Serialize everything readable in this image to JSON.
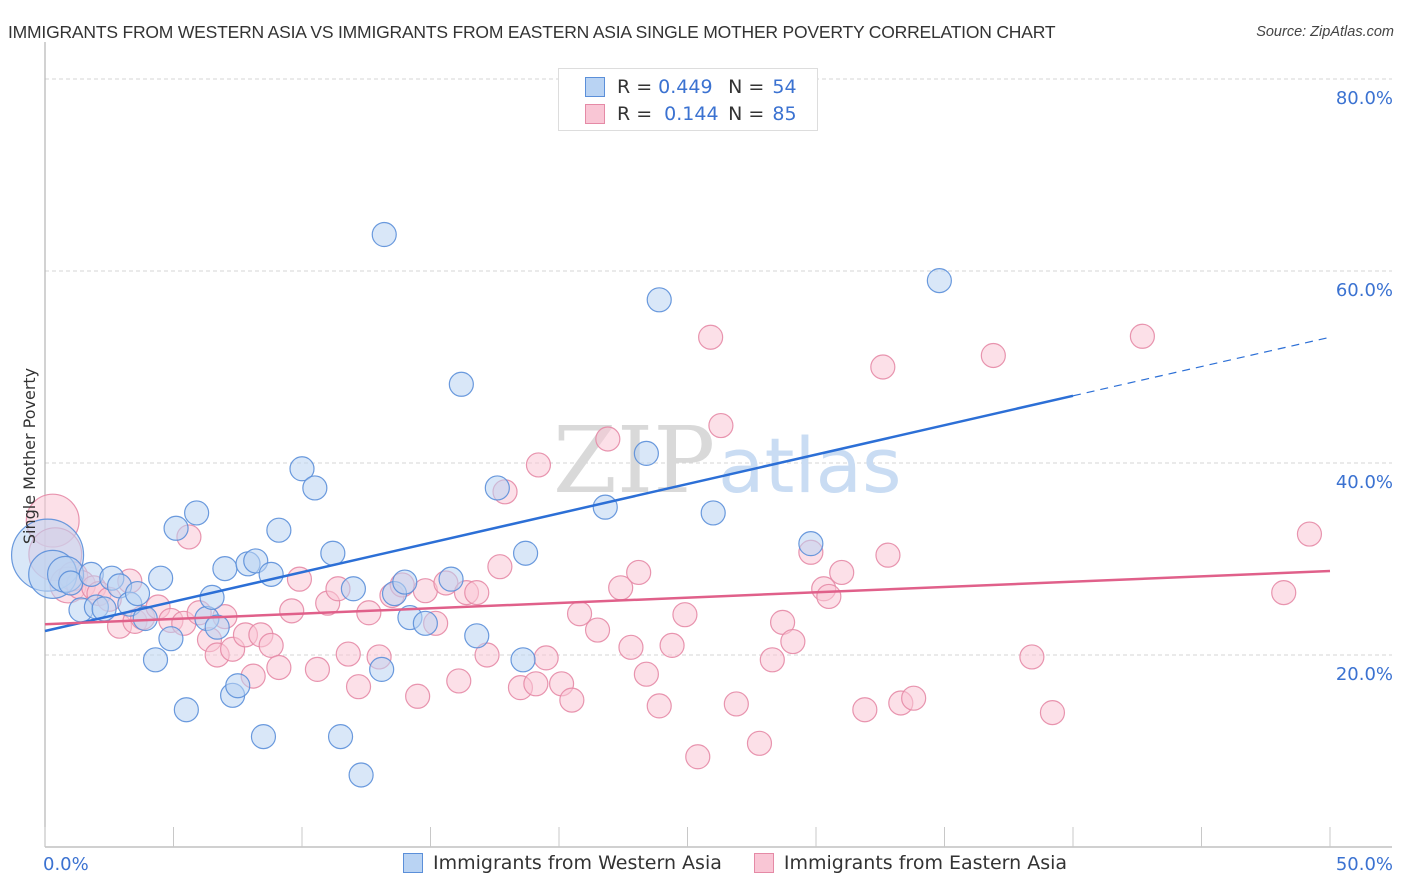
{
  "header": {
    "title": "IMMIGRANTS FROM WESTERN ASIA VS IMMIGRANTS FROM EASTERN ASIA SINGLE MOTHER POVERTY CORRELATION CHART",
    "source": "Source: ZipAtlas.com"
  },
  "legend": {
    "rows": [
      {
        "r_label": "R =",
        "r_value": "0.449",
        "n_label": "N =",
        "n_value": "54"
      },
      {
        "r_label": "R =",
        "r_value": "0.144",
        "n_label": "N =",
        "n_value": "85"
      }
    ]
  },
  "bottom_legend": [
    "Immigrants from Western Asia",
    "Immigrants from Eastern Asia"
  ],
  "watermark": {
    "zip": "ZIP",
    "atlas": "atlas"
  },
  "colors": {
    "blue_fill": "#b9d3f3",
    "blue_stroke": "#5b8fd9",
    "blue_line": "#2c6fd6",
    "pink_fill": "#f9c6d5",
    "pink_stroke": "#e58aa6",
    "pink_line": "#e0608a",
    "tick_text": "#3b72d1"
  },
  "chart_data": {
    "type": "scatter",
    "title": "IMMIGRANTS FROM WESTERN ASIA VS IMMIGRANTS FROM EASTERN ASIA SINGLE MOTHER POVERTY CORRELATION CHART",
    "xlabel": "",
    "ylabel": "Single Mother Poverty",
    "xlim": [
      0,
      50
    ],
    "ylim": [
      0,
      80
    ],
    "x_tick_labels": [
      "0.0%",
      "50.0%"
    ],
    "x_minor_ticks": [
      0,
      5,
      10,
      15,
      20,
      25,
      30,
      35,
      40,
      45,
      50
    ],
    "y_ticks": [
      20,
      40,
      60,
      80
    ],
    "y_tick_labels": [
      "20.0%",
      "40.0%",
      "60.0%",
      "80.0%"
    ],
    "grid": true,
    "legend_position": "top-center",
    "series": [
      {
        "name": "Immigrants from Western Asia",
        "R": 0.449,
        "N": 54,
        "trend": {
          "x": [
            0,
            40,
            50
          ],
          "y": [
            22.5,
            47.0,
            53.1
          ],
          "dashed_from_x": 40
        },
        "points": [
          [
            0.1,
            30.4,
            3
          ],
          [
            0.3,
            28.4,
            2
          ],
          [
            0.8,
            28.4,
            1.5
          ],
          [
            1.0,
            27.5,
            1
          ],
          [
            1.4,
            24.7,
            1
          ],
          [
            1.8,
            28.4,
            1
          ],
          [
            2.0,
            25.0,
            1
          ],
          [
            2.3,
            24.8,
            1
          ],
          [
            2.6,
            28.0,
            1
          ],
          [
            2.9,
            27.2,
            1
          ],
          [
            3.3,
            25.3,
            1
          ],
          [
            3.6,
            26.4,
            1
          ],
          [
            3.9,
            23.8,
            1
          ],
          [
            4.3,
            19.5,
            1
          ],
          [
            4.5,
            28.0,
            1
          ],
          [
            4.9,
            21.7,
            1
          ],
          [
            5.1,
            33.2,
            1
          ],
          [
            5.5,
            14.3,
            1
          ],
          [
            5.9,
            34.8,
            1
          ],
          [
            6.3,
            23.8,
            1
          ],
          [
            6.5,
            26.0,
            1
          ],
          [
            6.7,
            22.9,
            1
          ],
          [
            7.0,
            29.0,
            1
          ],
          [
            7.3,
            15.8,
            1
          ],
          [
            7.5,
            16.8,
            1
          ],
          [
            7.9,
            29.5,
            1
          ],
          [
            8.2,
            29.8,
            1
          ],
          [
            8.5,
            11.5,
            1
          ],
          [
            8.8,
            28.4,
            1
          ],
          [
            9.1,
            33.0,
            1
          ],
          [
            10.0,
            39.4,
            1
          ],
          [
            10.5,
            37.4,
            1
          ],
          [
            11.2,
            30.6,
            1
          ],
          [
            11.5,
            11.5,
            1
          ],
          [
            12.0,
            26.9,
            1
          ],
          [
            12.3,
            7.5,
            1
          ],
          [
            13.1,
            18.5,
            1
          ],
          [
            13.2,
            63.8,
            1
          ],
          [
            13.6,
            26.4,
            1
          ],
          [
            14.0,
            27.6,
            1
          ],
          [
            14.2,
            23.9,
            1
          ],
          [
            14.8,
            23.3,
            1
          ],
          [
            15.8,
            27.9,
            1
          ],
          [
            16.2,
            48.2,
            1
          ],
          [
            16.8,
            22.0,
            1
          ],
          [
            17.6,
            37.4,
            1
          ],
          [
            18.7,
            30.6,
            1
          ],
          [
            18.6,
            19.5,
            1
          ],
          [
            21.8,
            35.4,
            1
          ],
          [
            23.4,
            41.0,
            1
          ],
          [
            23.9,
            57.0,
            1
          ],
          [
            26.0,
            34.8,
            1
          ],
          [
            29.8,
            31.6,
            1
          ],
          [
            34.8,
            59.0,
            1
          ]
        ]
      },
      {
        "name": "Immigrants from Eastern Asia",
        "R": 0.144,
        "N": 85,
        "trend": {
          "x": [
            0,
            50
          ],
          "y": [
            23.2,
            28.75
          ]
        },
        "points": [
          [
            0.3,
            34.0,
            2.2
          ],
          [
            0.4,
            30.5,
            2.2
          ],
          [
            0.9,
            27.3,
            1.5
          ],
          [
            1.1,
            28.2,
            1.2
          ],
          [
            1.4,
            27.3,
            1.2
          ],
          [
            1.9,
            27.0,
            1
          ],
          [
            2.1,
            26.4,
            1
          ],
          [
            2.5,
            25.8,
            1
          ],
          [
            2.9,
            23.0,
            1
          ],
          [
            3.3,
            27.7,
            1
          ],
          [
            3.5,
            23.5,
            1
          ],
          [
            3.8,
            23.9,
            1
          ],
          [
            4.4,
            25.0,
            1
          ],
          [
            4.9,
            23.6,
            1
          ],
          [
            5.4,
            23.3,
            1
          ],
          [
            5.6,
            32.3,
            1
          ],
          [
            6.0,
            24.4,
            1
          ],
          [
            6.4,
            21.6,
            1
          ],
          [
            6.7,
            20.0,
            1
          ],
          [
            7.0,
            24.0,
            1
          ],
          [
            7.3,
            20.6,
            1
          ],
          [
            7.8,
            22.1,
            1
          ],
          [
            8.1,
            17.8,
            1
          ],
          [
            8.4,
            22.1,
            1
          ],
          [
            8.8,
            21.0,
            1
          ],
          [
            9.1,
            18.7,
            1
          ],
          [
            9.6,
            24.6,
            1
          ],
          [
            9.9,
            27.9,
            1
          ],
          [
            10.6,
            18.5,
            1
          ],
          [
            11.0,
            25.4,
            1
          ],
          [
            11.4,
            26.9,
            1
          ],
          [
            11.8,
            20.1,
            1
          ],
          [
            12.2,
            16.7,
            1
          ],
          [
            12.6,
            24.4,
            1
          ],
          [
            13.0,
            19.8,
            1
          ],
          [
            13.5,
            26.2,
            1
          ],
          [
            13.9,
            27.3,
            1
          ],
          [
            14.5,
            15.7,
            1
          ],
          [
            14.8,
            26.7,
            1
          ],
          [
            15.2,
            23.3,
            1
          ],
          [
            15.6,
            27.5,
            1
          ],
          [
            16.1,
            17.3,
            1
          ],
          [
            16.4,
            26.5,
            1
          ],
          [
            16.8,
            26.5,
            1
          ],
          [
            17.2,
            20.0,
            1
          ],
          [
            17.7,
            29.2,
            1
          ],
          [
            17.9,
            37.0,
            1
          ],
          [
            18.5,
            16.6,
            1
          ],
          [
            19.1,
            17.0,
            1
          ],
          [
            19.2,
            39.8,
            1
          ],
          [
            19.5,
            19.7,
            1
          ],
          [
            20.1,
            17.0,
            1
          ],
          [
            20.5,
            15.3,
            1
          ],
          [
            20.8,
            24.3,
            1
          ],
          [
            21.5,
            22.6,
            1
          ],
          [
            21.9,
            42.5,
            1
          ],
          [
            22.4,
            27.0,
            1
          ],
          [
            22.8,
            20.8,
            1
          ],
          [
            23.1,
            28.6,
            1
          ],
          [
            23.4,
            18.0,
            1
          ],
          [
            23.9,
            14.7,
            1
          ],
          [
            24.4,
            21.0,
            1
          ],
          [
            24.9,
            24.2,
            1
          ],
          [
            25.4,
            9.4,
            1
          ],
          [
            25.9,
            53.1,
            1
          ],
          [
            26.3,
            43.9,
            1
          ],
          [
            26.9,
            14.9,
            1
          ],
          [
            27.8,
            10.8,
            1
          ],
          [
            28.3,
            19.5,
            1
          ],
          [
            28.7,
            23.4,
            1
          ],
          [
            29.1,
            21.4,
            1
          ],
          [
            29.8,
            30.7,
            1
          ],
          [
            30.3,
            26.9,
            1
          ],
          [
            30.5,
            26.1,
            1
          ],
          [
            31.0,
            28.6,
            1
          ],
          [
            31.9,
            14.3,
            1
          ],
          [
            32.6,
            50.0,
            1
          ],
          [
            32.8,
            30.4,
            1
          ],
          [
            33.3,
            15.0,
            1
          ],
          [
            33.8,
            15.5,
            1
          ],
          [
            36.9,
            51.2,
            1
          ],
          [
            38.4,
            19.8,
            1
          ],
          [
            39.2,
            14.0,
            1
          ],
          [
            42.7,
            53.2,
            1
          ],
          [
            48.2,
            26.5,
            1
          ],
          [
            49.2,
            32.6,
            1
          ]
        ]
      }
    ]
  }
}
